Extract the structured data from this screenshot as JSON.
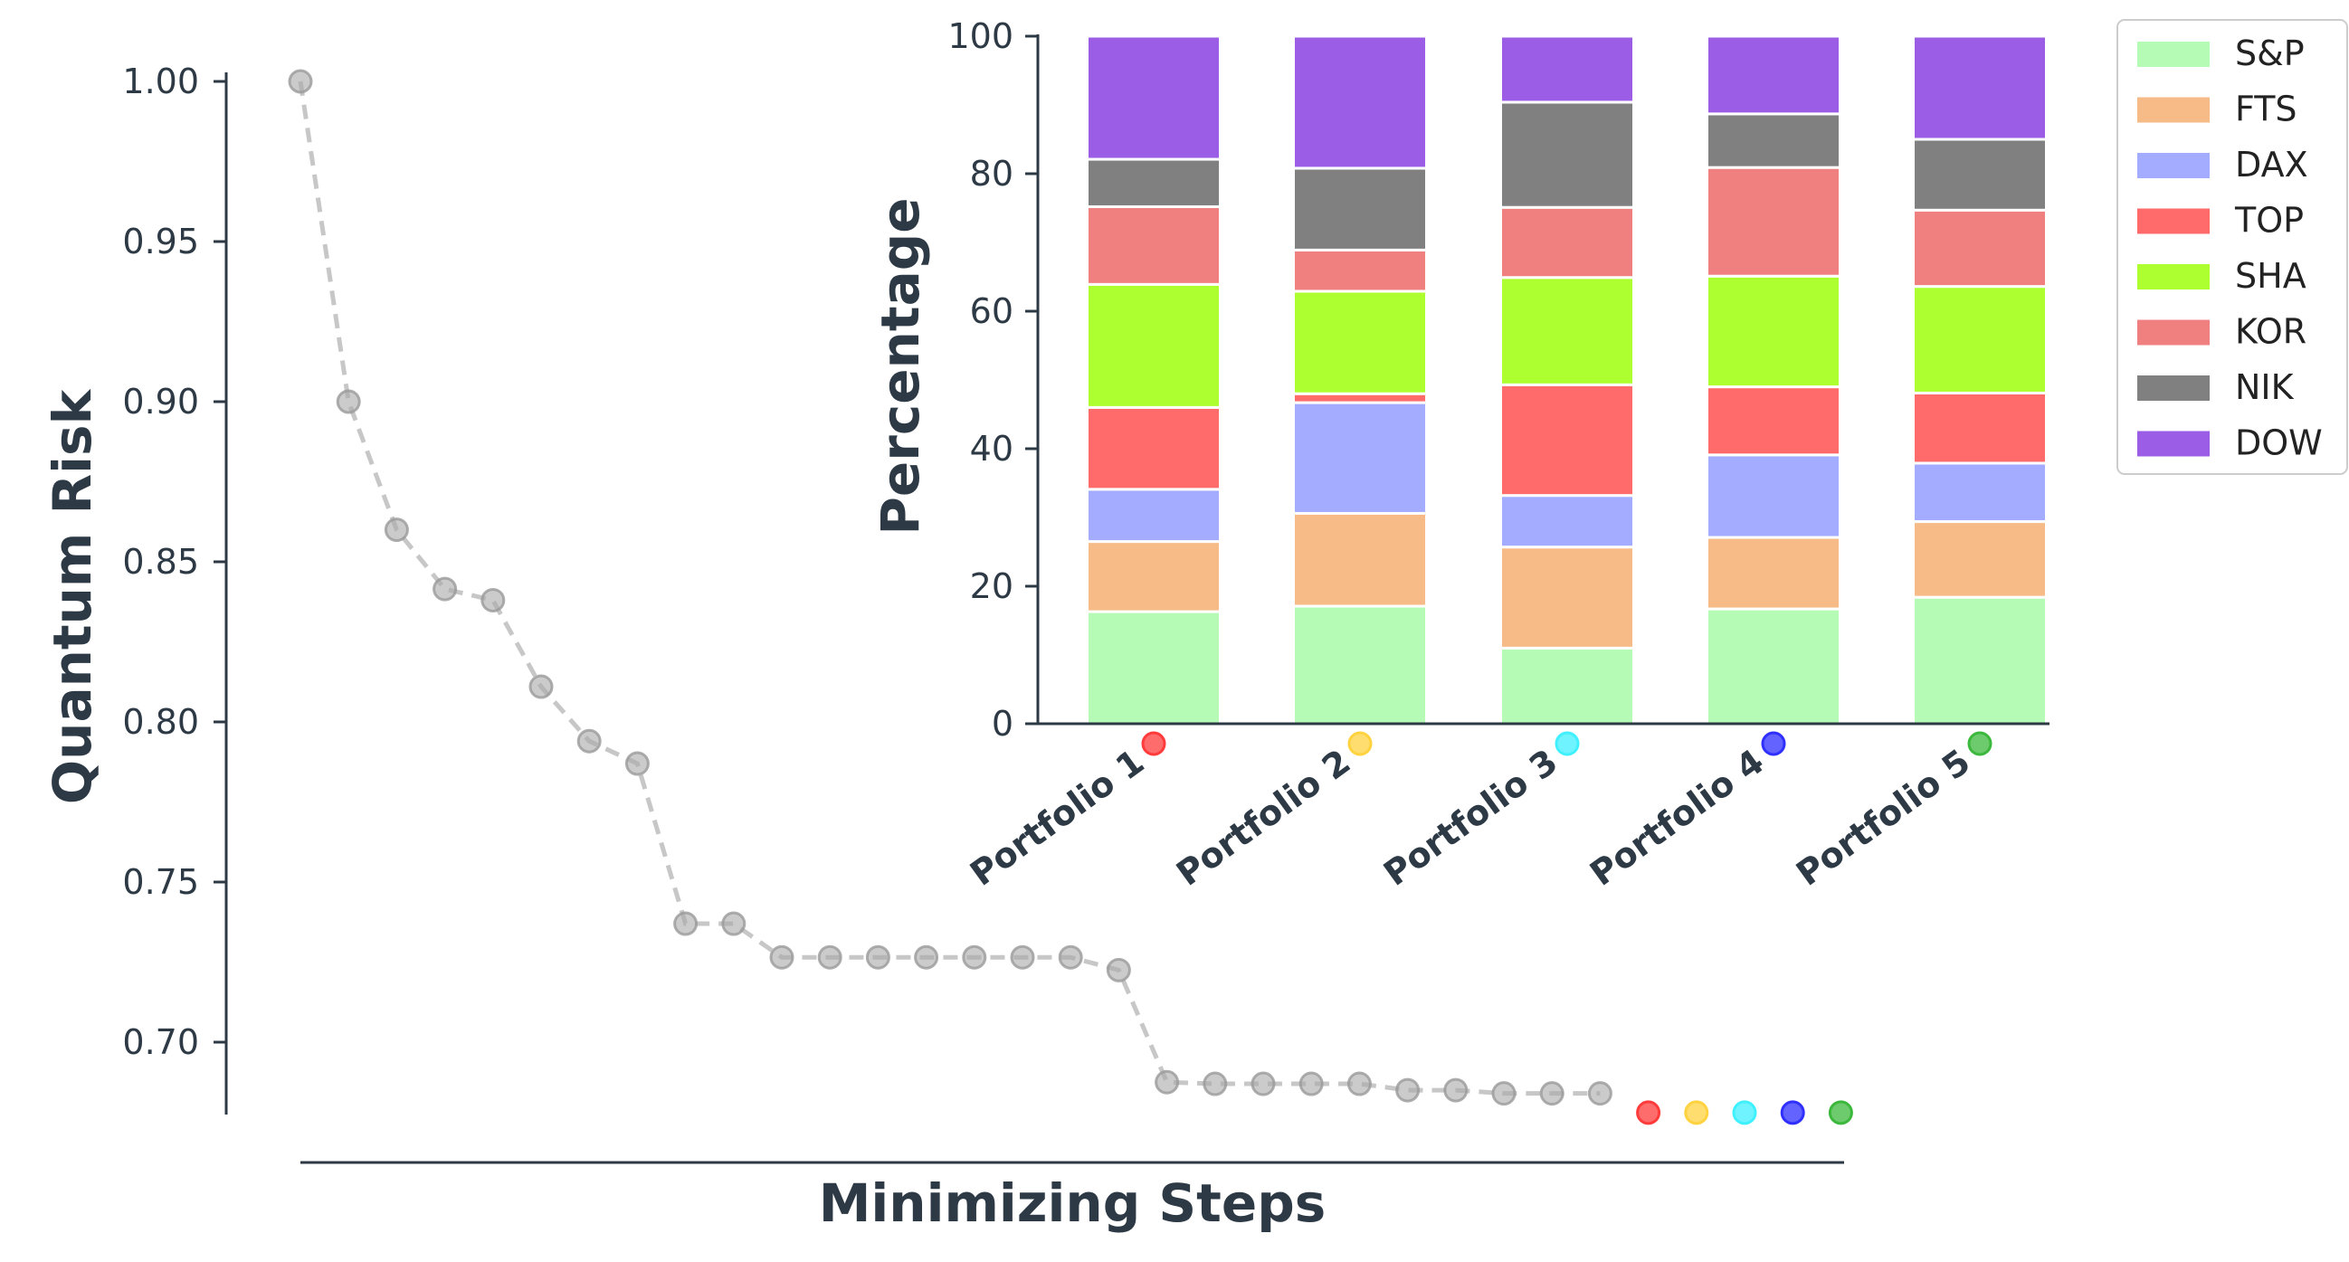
{
  "chart_data": [
    {
      "type": "line",
      "title": "",
      "xlabel": "Minimizing Steps",
      "ylabel": "Quantum Risk",
      "ylim": [
        0.678,
        1.01
      ],
      "yticks": [
        "0.70",
        "0.75",
        "0.80",
        "0.85",
        "0.90",
        "0.95",
        "1.00"
      ],
      "line_color": "#a9a9a9",
      "line_style": "dashed",
      "grid": false,
      "values": [
        1.0,
        0.9,
        0.86,
        0.8415,
        0.838,
        0.811,
        0.794,
        0.787,
        0.737,
        0.737,
        0.7265,
        0.7265,
        0.7265,
        0.7265,
        0.7265,
        0.7265,
        0.7265,
        0.7225,
        0.6875,
        0.687,
        0.687,
        0.687,
        0.687,
        0.685,
        0.685,
        0.684,
        0.684,
        0.684
      ],
      "portfolio_markers": [
        {
          "portfolio": "Portfolio 1",
          "color": "#ff3b3b",
          "value": 0.678
        },
        {
          "portfolio": "Portfolio 2",
          "color": "#ffd23f",
          "value": 0.678
        },
        {
          "portfolio": "Portfolio 3",
          "color": "#3ff0ff",
          "value": 0.678
        },
        {
          "portfolio": "Portfolio 4",
          "color": "#2f2fff",
          "value": 0.678
        },
        {
          "portfolio": "Portfolio 5",
          "color": "#3cb83c",
          "value": 0.678
        }
      ]
    },
    {
      "type": "bar",
      "stacked": true,
      "title": "",
      "xlabel": "",
      "ylabel": "Percentage",
      "ylim": [
        0,
        100
      ],
      "yticks": [
        "0",
        "20",
        "40",
        "60",
        "80",
        "100"
      ],
      "categories": [
        "Portfolio 1",
        "Portfolio 2",
        "Portfolio 3",
        "Portfolio 4",
        "Portfolio 5"
      ],
      "category_marker_colors": [
        "#ff3b3b",
        "#ffd23f",
        "#3ff0ff",
        "#2f2fff",
        "#3cb83c"
      ],
      "legend_position": "upper-right-outside",
      "grid": false,
      "series": [
        {
          "name": "S&P",
          "color": "#b5fbb5",
          "values": [
            16.3,
            17.1,
            11.0,
            16.7,
            18.4
          ]
        },
        {
          "name": "FTS",
          "color": "#f7bb87",
          "values": [
            10.2,
            13.5,
            14.7,
            10.4,
            11.0
          ]
        },
        {
          "name": "DAX",
          "color": "#a4acff",
          "values": [
            7.6,
            16.1,
            7.5,
            12.0,
            8.5
          ]
        },
        {
          "name": "TOP",
          "color": "#ff6b6b",
          "values": [
            11.9,
            1.3,
            16.1,
            9.9,
            10.2
          ]
        },
        {
          "name": "SHA",
          "color": "#adff2f",
          "values": [
            17.9,
            14.9,
            15.6,
            16.1,
            15.5
          ]
        },
        {
          "name": "KOR",
          "color": "#f08080",
          "values": [
            11.3,
            6.0,
            10.2,
            15.8,
            11.1
          ]
        },
        {
          "name": "NIK",
          "color": "#808080",
          "values": [
            6.9,
            11.9,
            15.3,
            7.8,
            10.3
          ]
        },
        {
          "name": "DOW",
          "color": "#9b5de5",
          "values": [
            17.9,
            19.2,
            9.6,
            11.3,
            15.0
          ]
        }
      ]
    }
  ]
}
